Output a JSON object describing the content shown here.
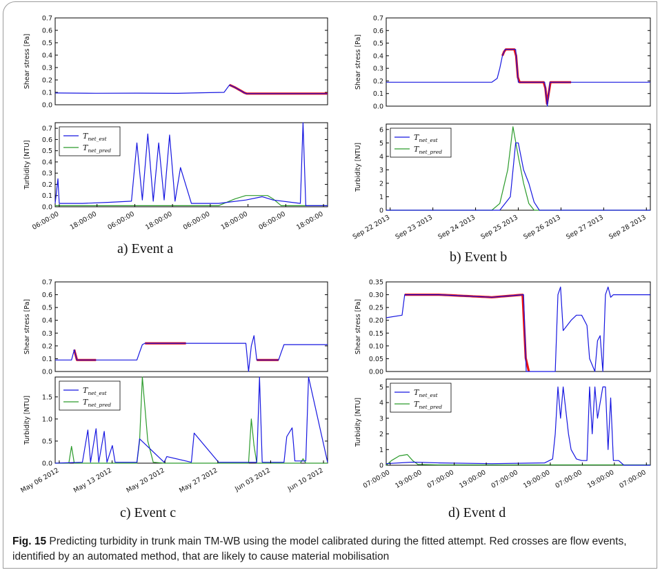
{
  "figure": {
    "caption_label": "Fig. 15",
    "caption_text": "Predicting turbidity in trunk main TM-WB using the model calibrated during the fitted attempt. Red crosses are flow events, identified by an automated method, that are likely to cause material mobilisation"
  },
  "colors": {
    "est": "#1515e0",
    "pred": "#2a9a2a",
    "events": "#ee1111"
  },
  "chart_data": [
    {
      "panel": "a",
      "label": "a)  Event a",
      "type": "line",
      "shear": {
        "ylabel": "Shear stress [Pa]",
        "yticks": [
          "0.0",
          "0.1",
          "0.2",
          "0.3",
          "0.4",
          "0.5",
          "0.6",
          "0.7"
        ],
        "ylim": [
          0,
          0.7
        ],
        "x": [
          0,
          0.15,
          0.3,
          0.45,
          0.55,
          0.62,
          0.64,
          0.66,
          0.7,
          0.8,
          0.9,
          1.0
        ],
        "y": [
          0.095,
          0.093,
          0.094,
          0.092,
          0.097,
          0.1,
          0.16,
          0.14,
          0.09,
          0.09,
          0.09,
          0.09
        ],
        "events_x": [
          0.64,
          1.0
        ]
      },
      "turb": {
        "ylabel": "Turbidity [NTU]",
        "yticks": [
          "0.0",
          "0.1",
          "0.2",
          "0.3",
          "0.4",
          "0.5",
          "0.6",
          "0.7"
        ],
        "ylim": [
          0,
          0.75
        ],
        "legend": [
          "T_net_est",
          "T_net_pred"
        ],
        "est": {
          "x": [
            0,
            0.01,
            0.015,
            0.02,
            0.1,
            0.2,
            0.28,
            0.3,
            0.32,
            0.34,
            0.36,
            0.38,
            0.4,
            0.42,
            0.44,
            0.46,
            0.5,
            0.6,
            0.7,
            0.76,
            0.8,
            0.9,
            0.91,
            0.92,
            0.93,
            1.0
          ],
          "y": [
            0.03,
            0.25,
            0.03,
            0.03,
            0.03,
            0.04,
            0.05,
            0.57,
            0.06,
            0.65,
            0.05,
            0.57,
            0.06,
            0.64,
            0.05,
            0.35,
            0.03,
            0.03,
            0.06,
            0.09,
            0.06,
            0.03,
            0.75,
            0.01,
            0.01,
            0.01
          ]
        },
        "pred": {
          "x": [
            0,
            0.6,
            0.62,
            0.66,
            0.7,
            0.78,
            0.8,
            0.83,
            0.86,
            1.0
          ],
          "y": [
            0.01,
            0.01,
            0.03,
            0.07,
            0.1,
            0.1,
            0.07,
            0.01,
            0.01,
            0.01
          ]
        }
      },
      "xticks": [
        "06:00:00",
        "18:00:00",
        "06:00:00",
        "18:00:00",
        "06:00:00",
        "18:00:00",
        "06:00:00",
        "18:00:00"
      ]
    },
    {
      "panel": "b",
      "label": "b)  Event b",
      "type": "line",
      "shear": {
        "ylabel": "Shear stress [Pa]",
        "yticks": [
          "0.0",
          "0.1",
          "0.2",
          "0.3",
          "0.4",
          "0.5",
          "0.6",
          "0.7"
        ],
        "ylim": [
          0,
          0.7
        ],
        "x": [
          0,
          0.3,
          0.4,
          0.42,
          0.43,
          0.44,
          0.45,
          0.46,
          0.49,
          0.5,
          0.55,
          0.6,
          0.61,
          0.62,
          0.7,
          1.0
        ],
        "y": [
          0.19,
          0.19,
          0.19,
          0.22,
          0.3,
          0.4,
          0.45,
          0.45,
          0.45,
          0.19,
          0.19,
          0.19,
          0.0,
          0.19,
          0.19,
          0.19
        ],
        "events_x": [
          0.44,
          0.7
        ]
      },
      "turb": {
        "ylabel": "Turbidity [NTU]",
        "yticks": [
          "0",
          "1",
          "2",
          "3",
          "4",
          "5",
          "6"
        ],
        "ylim": [
          0,
          6.4
        ],
        "legend": [
          "T_net_est",
          "T_net_pred"
        ],
        "est": {
          "x": [
            0,
            0.43,
            0.47,
            0.49,
            0.5,
            0.52,
            0.54,
            0.56,
            0.58,
            1.0
          ],
          "y": [
            0,
            0,
            1,
            5,
            5,
            3,
            2,
            0.6,
            0,
            0
          ]
        },
        "pred": {
          "x": [
            0,
            0.4,
            0.43,
            0.46,
            0.48,
            0.5,
            0.52,
            0.54,
            0.56,
            1.0
          ],
          "y": [
            0,
            0,
            0.5,
            3,
            6.2,
            4,
            2,
            0.5,
            0,
            0
          ]
        }
      },
      "xticks": [
        "Sep 22 2013",
        "Sep 23 2013",
        "Sep 24 2013",
        "Sep 25 2013",
        "Sep 26 2013",
        "Sep 27 2013",
        "Sep 28 2013"
      ]
    },
    {
      "panel": "c",
      "label": "c)  Event c",
      "type": "line",
      "shear": {
        "ylabel": "Shear stress [Pa]",
        "yticks": [
          "0.0",
          "0.1",
          "0.2",
          "0.3",
          "0.4",
          "0.5",
          "0.6",
          "0.7"
        ],
        "ylim": [
          0,
          0.7
        ],
        "x": [
          0,
          0.06,
          0.07,
          0.08,
          0.3,
          0.31,
          0.32,
          0.33,
          0.7,
          0.71,
          0.72,
          0.73,
          0.74,
          0.82,
          0.83,
          0.84,
          1.0
        ],
        "y": [
          0.09,
          0.09,
          0.17,
          0.09,
          0.09,
          0.15,
          0.21,
          0.22,
          0.22,
          0.0,
          0.2,
          0.28,
          0.09,
          0.09,
          0.15,
          0.21,
          0.21
        ],
        "events_x": [
          0.07,
          0.15,
          0.33,
          0.48,
          0.74,
          0.82
        ]
      },
      "turb": {
        "ylabel": "Turbidity [NTU]",
        "yticks": [
          "0.0",
          "0.5",
          "1.0",
          "1.5"
        ],
        "ylim": [
          0,
          1.95
        ],
        "legend": [
          "T_net_est",
          "T_net_pred"
        ],
        "est": {
          "x": [
            0,
            0.1,
            0.12,
            0.13,
            0.15,
            0.16,
            0.18,
            0.19,
            0.21,
            0.22,
            0.3,
            0.31,
            0.4,
            0.41,
            0.5,
            0.51,
            0.6,
            0.61,
            0.74,
            0.75,
            0.76,
            0.84,
            0.85,
            0.87,
            0.88,
            0.92,
            0.93,
            1.0
          ],
          "y": [
            0,
            0.02,
            0.75,
            0.02,
            0.78,
            0.02,
            0.72,
            0.02,
            0.4,
            0.02,
            0.02,
            0.55,
            0.02,
            0.15,
            0.02,
            0.68,
            0.02,
            0.02,
            0.02,
            1.95,
            0.02,
            0.02,
            0.6,
            0.8,
            0.05,
            0.05,
            1.95,
            0.02
          ]
        },
        "pred": {
          "x": [
            0,
            0.05,
            0.06,
            0.07,
            0.3,
            0.31,
            0.32,
            0.34,
            0.36,
            0.4,
            0.71,
            0.72,
            0.73,
            0.74,
            0.9,
            0.91,
            0.92,
            1.0
          ],
          "y": [
            0,
            0,
            0.38,
            0,
            0,
            0.5,
            1.95,
            0.5,
            0.02,
            0,
            0,
            1.0,
            0.4,
            0,
            0,
            0.1,
            0,
            0
          ]
        }
      },
      "xticks": [
        "May 06 2012",
        "May 13 2012",
        "May 20 2012",
        "May 27 2012",
        "Jun 03 2012",
        "Jun 10 2012"
      ]
    },
    {
      "panel": "d",
      "label": "d)  Event d",
      "type": "line",
      "shear": {
        "ylabel": "Shear stress [Pa]",
        "yticks": [
          "0.00",
          "0.05",
          "0.10",
          "0.15",
          "0.20",
          "0.25",
          "0.30",
          "0.35"
        ],
        "ylim": [
          0,
          0.35
        ],
        "x": [
          0,
          0.06,
          0.07,
          0.2,
          0.4,
          0.52,
          0.53,
          0.54,
          0.64,
          0.65,
          0.66,
          0.67,
          0.7,
          0.72,
          0.74,
          0.76,
          0.77,
          0.79,
          0.8,
          0.81,
          0.82,
          0.83,
          0.84,
          0.85,
          0.86,
          1.0
        ],
        "y": [
          0.21,
          0.22,
          0.3,
          0.3,
          0.29,
          0.3,
          0.0,
          0.0,
          0.0,
          0.3,
          0.33,
          0.16,
          0.2,
          0.22,
          0.22,
          0.18,
          0.05,
          0.0,
          0.12,
          0.14,
          0.0,
          0.3,
          0.33,
          0.29,
          0.3,
          0.3
        ],
        "events_x": [
          0.07,
          0.54
        ]
      },
      "turb": {
        "ylabel": "Turbidity [NTU]",
        "yticks": [
          "0",
          "1",
          "2",
          "3",
          "4",
          "5"
        ],
        "ylim": [
          0,
          5.5
        ],
        "legend": [
          "T_net_est",
          "T_net_pred"
        ],
        "est": {
          "x": [
            0,
            0.1,
            0.2,
            0.4,
            0.6,
            0.63,
            0.64,
            0.65,
            0.66,
            0.67,
            0.69,
            0.7,
            0.72,
            0.74,
            0.76,
            0.77,
            0.78,
            0.79,
            0.8,
            0.82,
            0.83,
            0.84,
            0.85,
            0.86,
            0.88,
            0.9,
            1.0
          ],
          "y": [
            0.1,
            0.2,
            0.15,
            0.1,
            0.15,
            0.4,
            2.0,
            5.0,
            3.0,
            5.0,
            2.0,
            1.0,
            0.4,
            0.3,
            0.3,
            5.0,
            2.0,
            5.0,
            3.0,
            5.0,
            5.0,
            1.0,
            4.3,
            0.3,
            0.3,
            0.0,
            0.0
          ]
        },
        "pred": {
          "x": [
            0,
            0.02,
            0.05,
            0.08,
            0.1,
            0.12,
            0.2,
            0.4,
            0.6,
            0.8,
            1.0
          ],
          "y": [
            0,
            0.3,
            0.6,
            0.68,
            0.3,
            0.05,
            0.02,
            0.02,
            0.02,
            0.02,
            0.02
          ]
        }
      },
      "xticks": [
        "07:00:00",
        "19:00:00",
        "07:00:00",
        "19:00:00",
        "07:00:00",
        "19:00:00",
        "07:00:00",
        "19:00:00",
        "07:00:00"
      ]
    }
  ]
}
